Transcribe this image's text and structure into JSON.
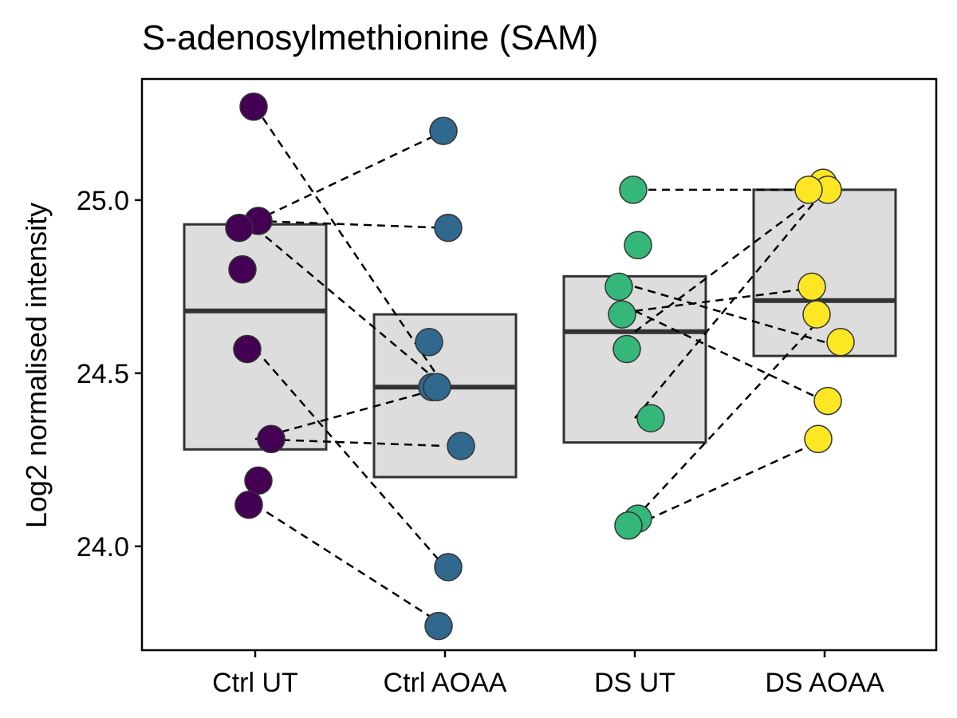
{
  "chart_data": {
    "type": "box",
    "title": "S-adenosylmethionine (SAM)",
    "xlabel": "",
    "ylabel": "Log2 normalised intensity",
    "ylim": [
      23.7,
      25.35
    ],
    "yticks": [
      24.0,
      24.5,
      25.0
    ],
    "categories": [
      "Ctrl UT",
      "Ctrl AOAA",
      "DS UT",
      "DS AOAA"
    ],
    "colors": [
      "#440154",
      "#31688e",
      "#35b779",
      "#fde725"
    ],
    "box_fill": "#dddddd",
    "grid": false,
    "legend": "none",
    "boxes": [
      {
        "q1": 24.28,
        "median": 24.68,
        "q3": 24.93
      },
      {
        "q1": 24.2,
        "median": 24.46,
        "q3": 24.67
      },
      {
        "q1": 24.3,
        "median": 24.62,
        "q3": 24.78
      },
      {
        "q1": 24.55,
        "median": 24.71,
        "q3": 25.03
      }
    ],
    "points": [
      [
        25.27,
        24.94,
        24.92,
        24.8,
        24.57,
        24.31,
        24.19,
        24.12
      ],
      [
        25.2,
        24.92,
        24.59,
        24.46,
        24.46,
        24.29,
        23.94,
        23.77
      ],
      [
        25.03,
        24.87,
        24.75,
        24.67,
        24.57,
        24.37,
        24.08,
        24.06
      ],
      [
        25.05,
        25.03,
        25.03,
        24.75,
        24.67,
        24.59,
        24.42,
        24.31
      ]
    ],
    "pairs": [
      {
        "from": [
          0,
          25.27
        ],
        "to": [
          1,
          24.46
        ]
      },
      {
        "from": [
          0,
          24.94
        ],
        "to": [
          1,
          24.92
        ]
      },
      {
        "from": [
          0,
          24.94
        ],
        "to": [
          1,
          25.2
        ]
      },
      {
        "from": [
          0,
          24.92
        ],
        "to": [
          1,
          24.46
        ]
      },
      {
        "from": [
          0,
          24.57
        ],
        "to": [
          1,
          23.94
        ]
      },
      {
        "from": [
          0,
          24.31
        ],
        "to": [
          1,
          24.29
        ]
      },
      {
        "from": [
          0,
          24.31
        ],
        "to": [
          1,
          24.46
        ]
      },
      {
        "from": [
          0,
          24.12
        ],
        "to": [
          1,
          23.77
        ]
      },
      {
        "from": [
          2,
          25.03
        ],
        "to": [
          3,
          25.03
        ]
      },
      {
        "from": [
          2,
          24.68
        ],
        "to": [
          3,
          24.42
        ]
      },
      {
        "from": [
          2,
          24.68
        ],
        "to": [
          3,
          24.75
        ]
      },
      {
        "from": [
          2,
          24.75
        ],
        "to": [
          3,
          24.59
        ]
      },
      {
        "from": [
          2,
          24.37
        ],
        "to": [
          3,
          25.03
        ]
      },
      {
        "from": [
          2,
          24.62
        ],
        "to": [
          3,
          25.03
        ]
      },
      {
        "from": [
          2,
          24.08
        ],
        "to": [
          3,
          24.67
        ]
      },
      {
        "from": [
          2,
          24.06
        ],
        "to": [
          3,
          24.31
        ]
      }
    ]
  }
}
